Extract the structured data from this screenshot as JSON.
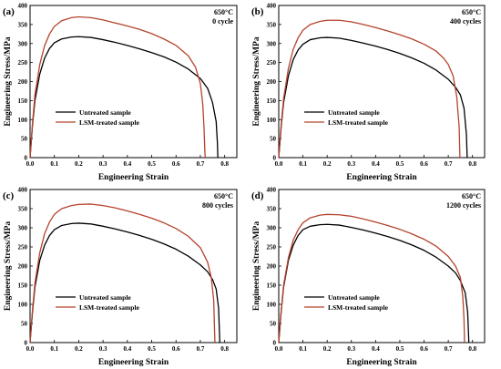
{
  "chart_data": [
    {
      "type": "line",
      "panel_label": "(a)",
      "conditions": [
        "650°C",
        "0 cycle"
      ],
      "xlabel": "Engineering Strain",
      "ylabel": "Engineering Stress/MPa",
      "xlim": [
        0,
        0.85
      ],
      "ylim": [
        0,
        400
      ],
      "xticks": [
        "0.0",
        "0.1",
        "0.2",
        "0.3",
        "0.4",
        "0.5",
        "0.6",
        "0.7",
        "0.8"
      ],
      "yticks": [
        "0",
        "50",
        "100",
        "150",
        "200",
        "250",
        "300",
        "350",
        "400"
      ],
      "legend_position": "lower-left",
      "series": [
        {
          "name": "Untreated sample",
          "color": "#000000",
          "points": [
            [
              0,
              0
            ],
            [
              0.01,
              85
            ],
            [
              0.02,
              150
            ],
            [
              0.04,
              220
            ],
            [
              0.06,
              262
            ],
            [
              0.08,
              287
            ],
            [
              0.1,
              302
            ],
            [
              0.13,
              312
            ],
            [
              0.17,
              317
            ],
            [
              0.2,
              318
            ],
            [
              0.25,
              316
            ],
            [
              0.3,
              310
            ],
            [
              0.35,
              303
            ],
            [
              0.4,
              295
            ],
            [
              0.45,
              286
            ],
            [
              0.5,
              276
            ],
            [
              0.55,
              265
            ],
            [
              0.6,
              251
            ],
            [
              0.65,
              233
            ],
            [
              0.7,
              208
            ],
            [
              0.73,
              182
            ],
            [
              0.75,
              145
            ],
            [
              0.765,
              95
            ],
            [
              0.77,
              40
            ],
            [
              0.772,
              0
            ]
          ]
        },
        {
          "name": "LSM-treated sample",
          "color": "#b5432c",
          "points": [
            [
              0,
              0
            ],
            [
              0.01,
              90
            ],
            [
              0.02,
              165
            ],
            [
              0.04,
              245
            ],
            [
              0.06,
              295
            ],
            [
              0.08,
              325
            ],
            [
              0.1,
              345
            ],
            [
              0.13,
              360
            ],
            [
              0.17,
              368
            ],
            [
              0.2,
              370
            ],
            [
              0.25,
              368
            ],
            [
              0.3,
              362
            ],
            [
              0.35,
              354
            ],
            [
              0.4,
              346
            ],
            [
              0.45,
              337
            ],
            [
              0.5,
              326
            ],
            [
              0.55,
              312
            ],
            [
              0.6,
              295
            ],
            [
              0.65,
              268
            ],
            [
              0.68,
              238
            ],
            [
              0.7,
              195
            ],
            [
              0.71,
              140
            ],
            [
              0.715,
              80
            ],
            [
              0.718,
              25
            ],
            [
              0.72,
              0
            ]
          ]
        }
      ]
    },
    {
      "type": "line",
      "panel_label": "(b)",
      "conditions": [
        "650°C",
        "400 cycles"
      ],
      "xlabel": "Engineering Strain",
      "ylabel": "Engineering Stress/MPa",
      "xlim": [
        0,
        0.85
      ],
      "ylim": [
        0,
        400
      ],
      "xticks": [
        "0.0",
        "0.1",
        "0.2",
        "0.3",
        "0.4",
        "0.5",
        "0.6",
        "0.7",
        "0.8"
      ],
      "yticks": [
        "0",
        "50",
        "100",
        "150",
        "200",
        "250",
        "300",
        "350",
        "400"
      ],
      "legend_position": "lower-left",
      "series": [
        {
          "name": "Untreated sample",
          "color": "#000000",
          "points": [
            [
              0,
              0
            ],
            [
              0.01,
              80
            ],
            [
              0.02,
              145
            ],
            [
              0.04,
              215
            ],
            [
              0.06,
              258
            ],
            [
              0.08,
              283
            ],
            [
              0.1,
              298
            ],
            [
              0.13,
              310
            ],
            [
              0.17,
              315
            ],
            [
              0.2,
              316
            ],
            [
              0.25,
              314
            ],
            [
              0.3,
              308
            ],
            [
              0.35,
              301
            ],
            [
              0.4,
              293
            ],
            [
              0.45,
              284
            ],
            [
              0.5,
              274
            ],
            [
              0.55,
              262
            ],
            [
              0.6,
              248
            ],
            [
              0.65,
              230
            ],
            [
              0.7,
              206
            ],
            [
              0.73,
              185
            ],
            [
              0.75,
              165
            ],
            [
              0.765,
              130
            ],
            [
              0.775,
              60
            ],
            [
              0.778,
              0
            ]
          ]
        },
        {
          "name": "LSM-treated sample",
          "color": "#b5432c",
          "points": [
            [
              0,
              0
            ],
            [
              0.01,
              85
            ],
            [
              0.02,
              155
            ],
            [
              0.04,
              235
            ],
            [
              0.06,
              285
            ],
            [
              0.08,
              315
            ],
            [
              0.1,
              335
            ],
            [
              0.13,
              350
            ],
            [
              0.17,
              358
            ],
            [
              0.2,
              361
            ],
            [
              0.25,
              361
            ],
            [
              0.3,
              357
            ],
            [
              0.35,
              350
            ],
            [
              0.4,
              342
            ],
            [
              0.45,
              333
            ],
            [
              0.5,
              323
            ],
            [
              0.55,
              312
            ],
            [
              0.6,
              298
            ],
            [
              0.65,
              280
            ],
            [
              0.68,
              262
            ],
            [
              0.7,
              245
            ],
            [
              0.72,
              215
            ],
            [
              0.735,
              160
            ],
            [
              0.745,
              80
            ],
            [
              0.748,
              0
            ]
          ]
        }
      ]
    },
    {
      "type": "line",
      "panel_label": "(c)",
      "conditions": [
        "650°C",
        "800 cycles"
      ],
      "xlabel": "Engineering Strain",
      "ylabel": "Engineering Stress/MPa",
      "xlim": [
        0,
        0.85
      ],
      "ylim": [
        0,
        400
      ],
      "xticks": [
        "0.0",
        "0.1",
        "0.2",
        "0.3",
        "0.4",
        "0.5",
        "0.6",
        "0.7",
        "0.8"
      ],
      "yticks": [
        "0",
        "50",
        "100",
        "150",
        "200",
        "250",
        "300",
        "350",
        "400"
      ],
      "legend_position": "lower-left",
      "series": [
        {
          "name": "Untreated sample",
          "color": "#000000",
          "points": [
            [
              0,
              0
            ],
            [
              0.01,
              80
            ],
            [
              0.02,
              145
            ],
            [
              0.04,
              215
            ],
            [
              0.06,
              255
            ],
            [
              0.08,
              280
            ],
            [
              0.1,
              295
            ],
            [
              0.13,
              306
            ],
            [
              0.17,
              311
            ],
            [
              0.2,
              312
            ],
            [
              0.25,
              310
            ],
            [
              0.3,
              304
            ],
            [
              0.35,
              297
            ],
            [
              0.4,
              289
            ],
            [
              0.45,
              280
            ],
            [
              0.5,
              270
            ],
            [
              0.55,
              258
            ],
            [
              0.6,
              244
            ],
            [
              0.65,
              226
            ],
            [
              0.7,
              203
            ],
            [
              0.73,
              185
            ],
            [
              0.75,
              165
            ],
            [
              0.765,
              140
            ],
            [
              0.775,
              90
            ],
            [
              0.78,
              0
            ]
          ]
        },
        {
          "name": "LSM-treated sample",
          "color": "#b5432c",
          "points": [
            [
              0,
              0
            ],
            [
              0.01,
              85
            ],
            [
              0.02,
              155
            ],
            [
              0.04,
              235
            ],
            [
              0.06,
              285
            ],
            [
              0.08,
              315
            ],
            [
              0.1,
              335
            ],
            [
              0.13,
              350
            ],
            [
              0.17,
              358
            ],
            [
              0.2,
              361
            ],
            [
              0.25,
              362
            ],
            [
              0.3,
              358
            ],
            [
              0.35,
              352
            ],
            [
              0.4,
              344
            ],
            [
              0.45,
              335
            ],
            [
              0.5,
              325
            ],
            [
              0.55,
              313
            ],
            [
              0.6,
              298
            ],
            [
              0.65,
              278
            ],
            [
              0.7,
              248
            ],
            [
              0.73,
              210
            ],
            [
              0.745,
              170
            ],
            [
              0.755,
              110
            ],
            [
              0.758,
              40
            ],
            [
              0.76,
              0
            ]
          ]
        }
      ]
    },
    {
      "type": "line",
      "panel_label": "(d)",
      "conditions": [
        "650°C",
        "1200 cycles"
      ],
      "xlabel": "Engineering Strain",
      "ylabel": "Engineering Stress/MPa",
      "xlim": [
        0,
        0.85
      ],
      "ylim": [
        0,
        400
      ],
      "xticks": [
        "0.0",
        "0.1",
        "0.2",
        "0.3",
        "0.4",
        "0.5",
        "0.6",
        "0.7",
        "0.8"
      ],
      "yticks": [
        "0",
        "50",
        "100",
        "150",
        "200",
        "250",
        "300",
        "350",
        "400"
      ],
      "legend_position": "lower-left",
      "series": [
        {
          "name": "Untreated sample",
          "color": "#000000",
          "points": [
            [
              0,
              0
            ],
            [
              0.01,
              80
            ],
            [
              0.02,
              145
            ],
            [
              0.04,
              215
            ],
            [
              0.06,
              255
            ],
            [
              0.08,
              280
            ],
            [
              0.1,
              295
            ],
            [
              0.13,
              304
            ],
            [
              0.17,
              308
            ],
            [
              0.2,
              309
            ],
            [
              0.25,
              307
            ],
            [
              0.3,
              301
            ],
            [
              0.35,
              294
            ],
            [
              0.4,
              286
            ],
            [
              0.45,
              277
            ],
            [
              0.5,
              267
            ],
            [
              0.55,
              255
            ],
            [
              0.6,
              241
            ],
            [
              0.65,
              223
            ],
            [
              0.7,
              200
            ],
            [
              0.73,
              182
            ],
            [
              0.75,
              162
            ],
            [
              0.77,
              130
            ],
            [
              0.78,
              80
            ],
            [
              0.785,
              0
            ]
          ]
        },
        {
          "name": "LSM-treated sample",
          "color": "#b5432c",
          "points": [
            [
              0,
              0
            ],
            [
              0.01,
              82
            ],
            [
              0.02,
              150
            ],
            [
              0.04,
              222
            ],
            [
              0.06,
              268
            ],
            [
              0.08,
              295
            ],
            [
              0.1,
              313
            ],
            [
              0.13,
              326
            ],
            [
              0.17,
              333
            ],
            [
              0.2,
              335
            ],
            [
              0.25,
              334
            ],
            [
              0.3,
              330
            ],
            [
              0.35,
              323
            ],
            [
              0.4,
              315
            ],
            [
              0.45,
              306
            ],
            [
              0.5,
              296
            ],
            [
              0.55,
              284
            ],
            [
              0.6,
              270
            ],
            [
              0.65,
              252
            ],
            [
              0.7,
              225
            ],
            [
              0.73,
              200
            ],
            [
              0.75,
              170
            ],
            [
              0.76,
              120
            ],
            [
              0.765,
              60
            ],
            [
              0.767,
              0
            ]
          ]
        }
      ]
    }
  ]
}
